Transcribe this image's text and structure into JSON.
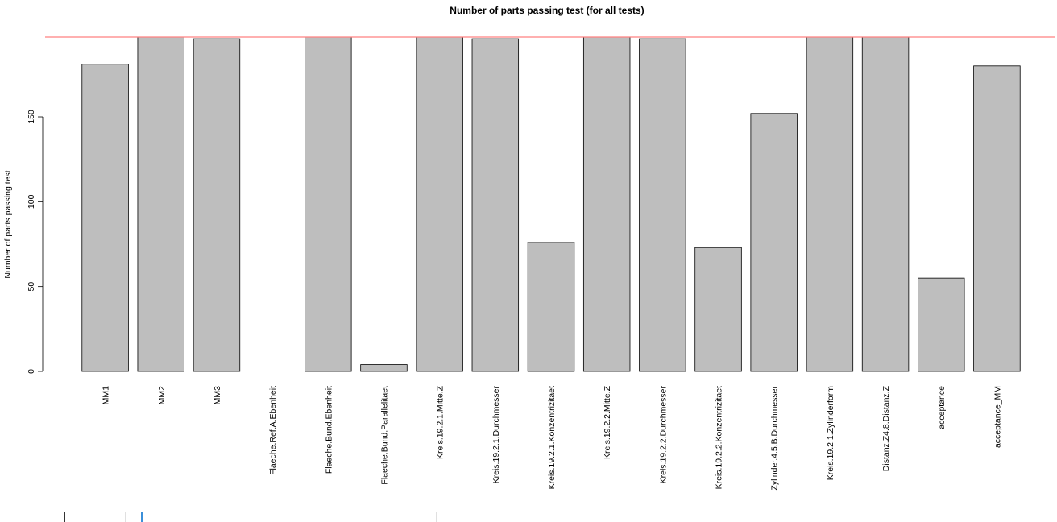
{
  "chart_data": {
    "type": "bar",
    "title": "Number of parts passing test (for all tests)",
    "ylabel": "Number of parts passing test",
    "xlabel": "",
    "ylim": [
      0,
      197
    ],
    "yticks": [
      0,
      50,
      100,
      150
    ],
    "reference_line": {
      "value": 197,
      "color": "#ff8080"
    },
    "bar_color": "#bebebe",
    "categories": [
      "MM1",
      "MM2",
      "MM3",
      "Flaeche.Ref.A.Ebenheit",
      "Flaeche.Bund.Ebenheit",
      "Flaeche.Bund.Parallelitaet",
      "Kreis.19.2.1.Mitte.Z",
      "Kreis.19.2.1.Durchmesser",
      "Kreis.19.2.1.Konzentrizitaet",
      "Kreis.19.2.2.Mitte.Z",
      "Kreis.19.2.2.Durchmesser",
      "Kreis.19.2.2.Konzentrizitaet",
      "Zylinder.4.5.B.Durchmesser",
      "Kreis.19.2.1.Zylinderform",
      "Distanz.Z4.8.Distanz.Z",
      "acceptance",
      "acceptance_MM"
    ],
    "values": [
      181,
      197,
      196,
      0,
      197,
      4,
      197,
      196,
      76,
      197,
      196,
      73,
      152,
      197,
      197,
      55,
      180
    ]
  }
}
